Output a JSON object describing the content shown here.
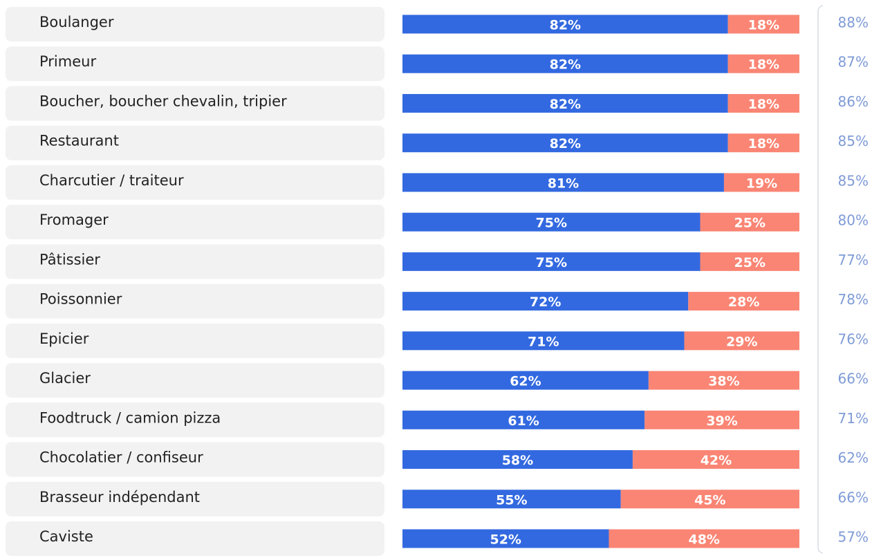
{
  "chart_data": {
    "type": "bar",
    "orientation": "horizontal",
    "stacked": true,
    "categories": [
      "Boulanger",
      "Primeur",
      "Boucher, boucher chevalin, tripier",
      "Restaurant",
      "Charcutier / traiteur",
      "Fromager",
      "Pâtissier",
      "Poissonnier",
      "Epicier",
      "Glacier",
      "Foodtruck / camion pizza",
      "Chocolatier / confiseur",
      "Brasseur indépendant",
      "Caviste"
    ],
    "xlim": [
      0,
      100
    ],
    "series": [
      {
        "color": "#3369e0",
        "values": [
          82,
          82,
          82,
          82,
          81,
          75,
          75,
          72,
          71,
          62,
          61,
          58,
          55,
          52
        ],
        "value_labels": [
          "82%",
          "82%",
          "82%",
          "82%",
          "81%",
          "75%",
          "75%",
          "72%",
          "71%",
          "62%",
          "61%",
          "58%",
          "55%",
          "52%"
        ]
      },
      {
        "color": "#fa8574",
        "values": [
          18,
          18,
          18,
          18,
          19,
          25,
          25,
          28,
          29,
          38,
          39,
          42,
          45,
          48
        ],
        "value_labels": [
          "18%",
          "18%",
          "18%",
          "18%",
          "19%",
          "25%",
          "25%",
          "28%",
          "29%",
          "38%",
          "39%",
          "42%",
          "45%",
          "48%"
        ]
      }
    ],
    "side_values": {
      "color": "#7f9bd6",
      "values": [
        88,
        87,
        86,
        85,
        85,
        80,
        77,
        78,
        76,
        66,
        71,
        62,
        66,
        57
      ],
      "value_labels": [
        "88%",
        "87%",
        "86%",
        "85%",
        "85%",
        "80%",
        "77%",
        "78%",
        "76%",
        "66%",
        "71%",
        "62%",
        "66%",
        "57%"
      ]
    }
  }
}
